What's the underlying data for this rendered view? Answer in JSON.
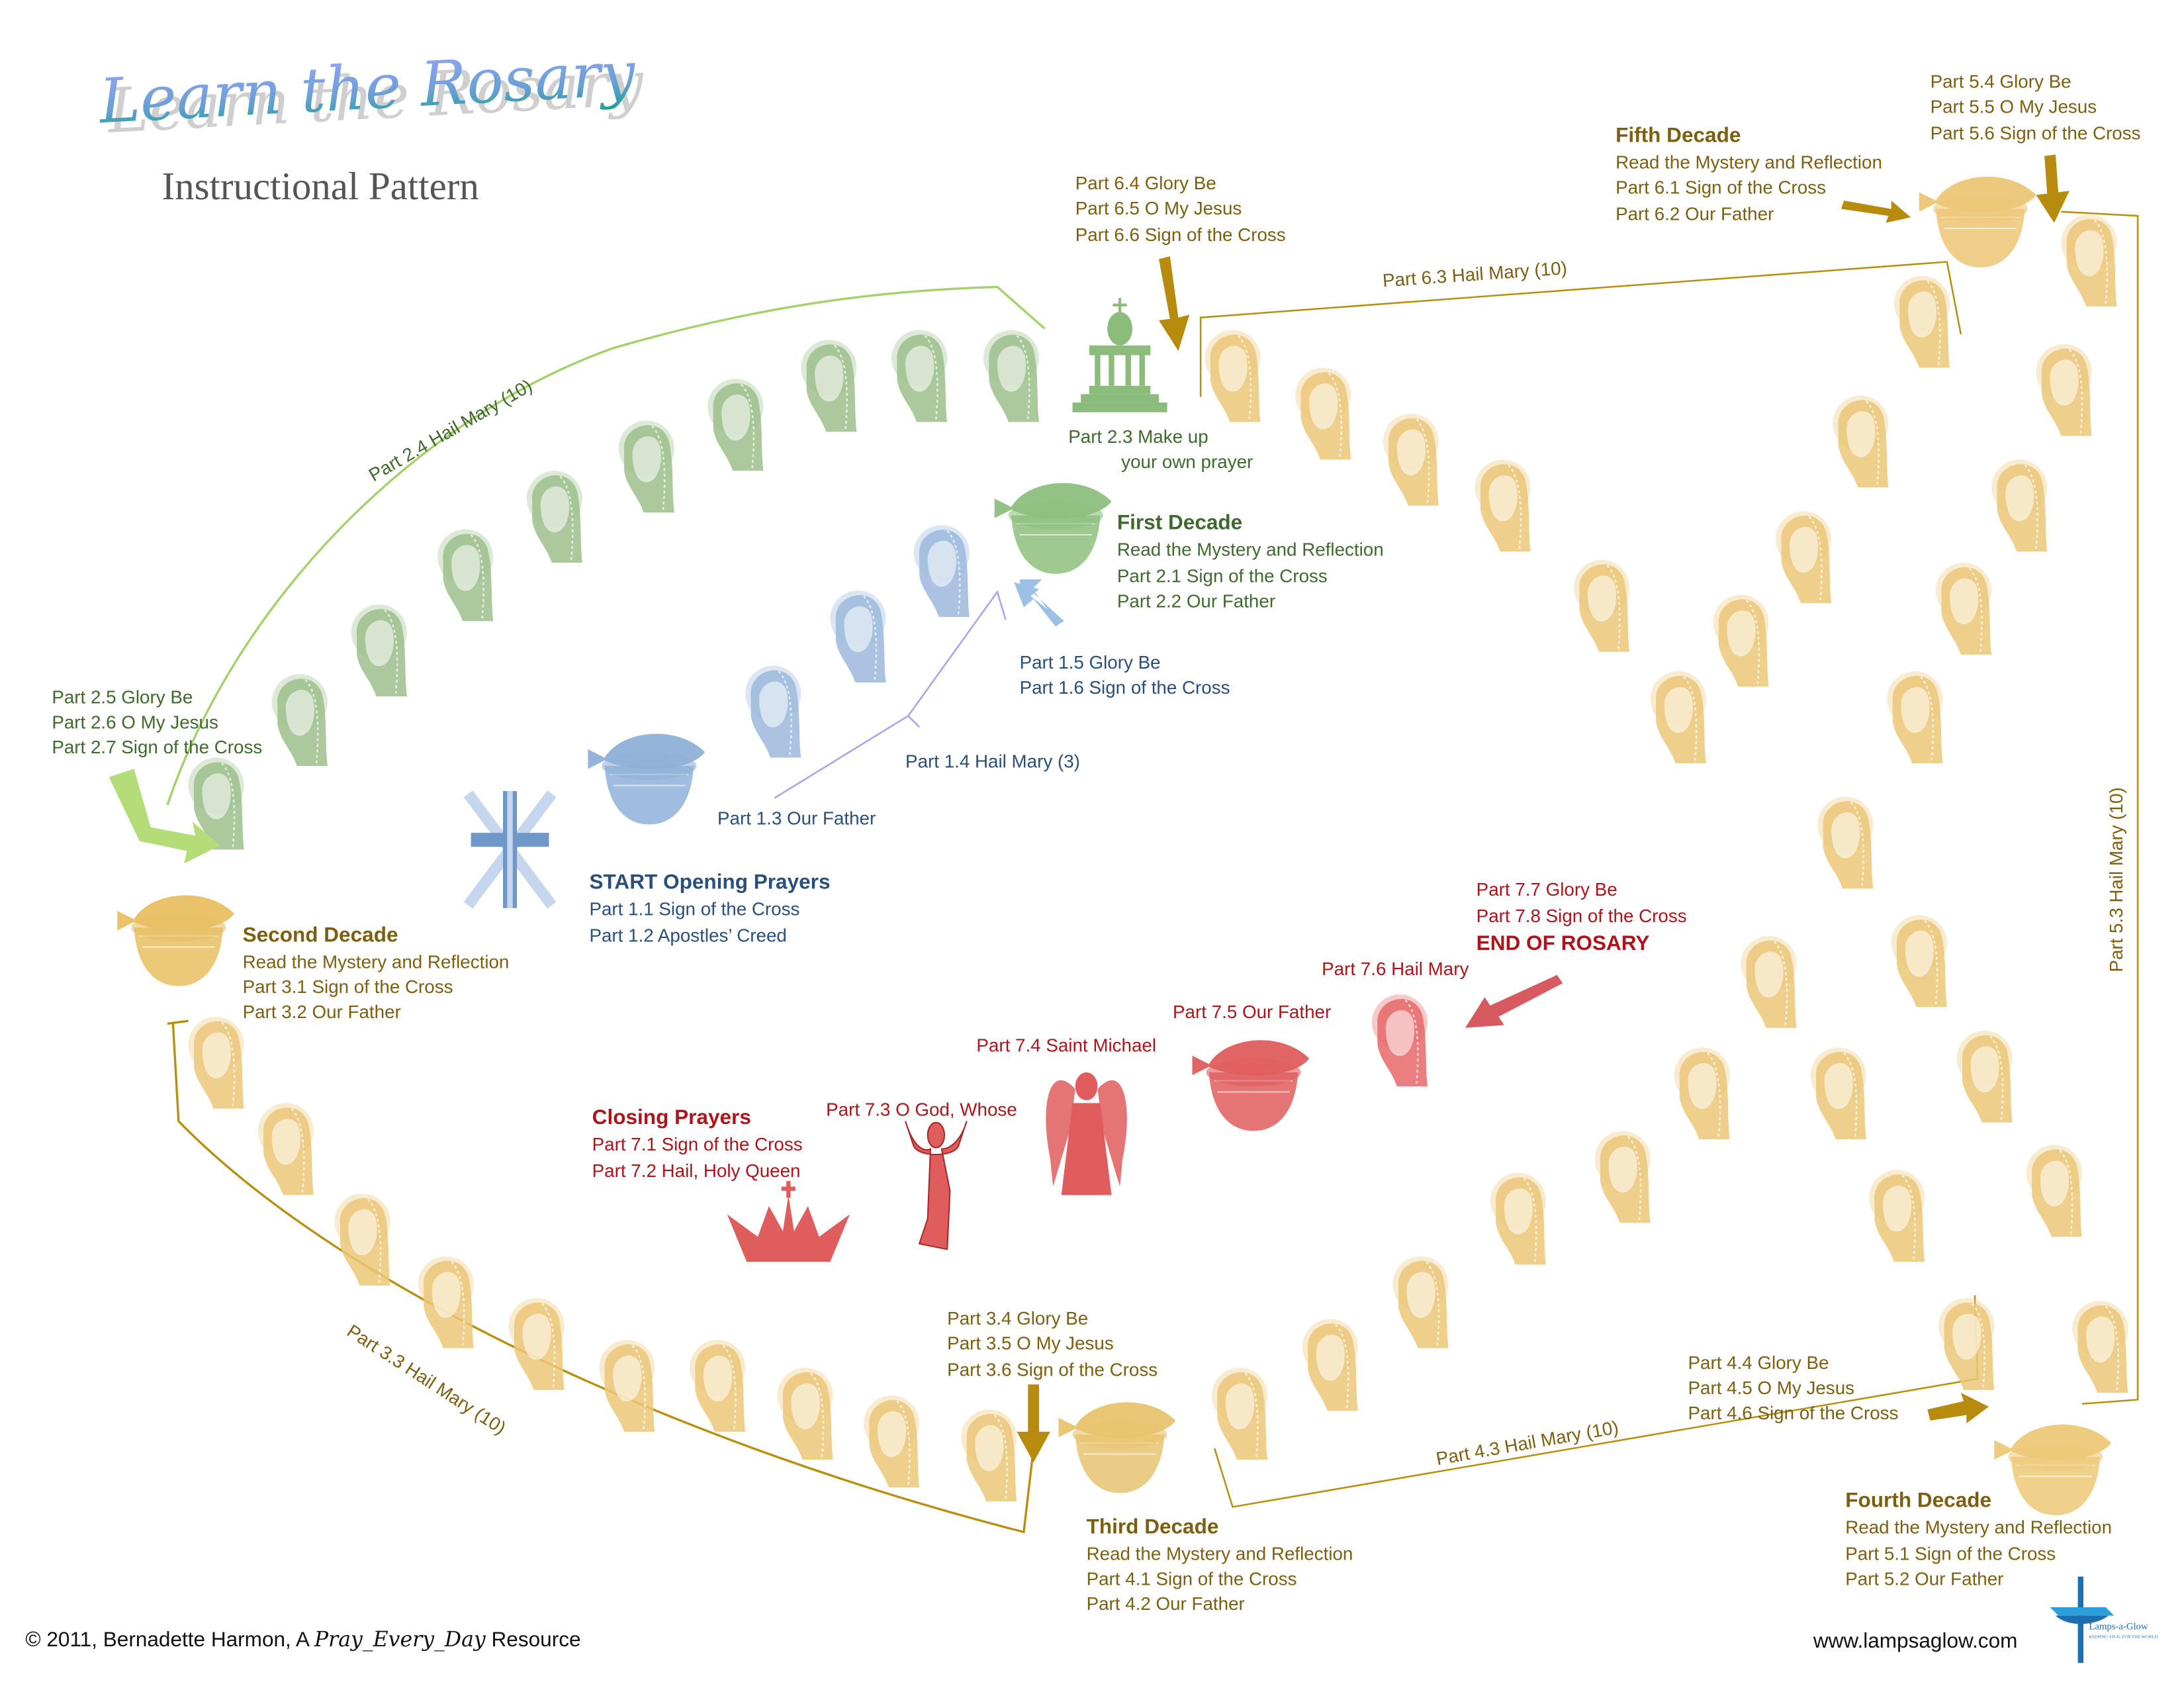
{
  "title": {
    "main": "Learn the Rosary",
    "subtitle": "Instructional Pattern"
  },
  "colors": {
    "opening": "#2a4f7a",
    "first_decade": "#3e6a2e",
    "gold": "#7d5f12",
    "closing": "#b0141b",
    "green_line": "#a5d06a",
    "gold_line": "#b8900f",
    "blue_line": "#a9a3ee",
    "blue_arrow": "#9dc1e6",
    "green_arrow": "#b4dc78",
    "gold_arrow": "#b78c0e",
    "red_arrow": "#d65a5f",
    "bead_gold": "#ebc778",
    "bead_green": "#9cc08c",
    "bead_blue": "#9cb8dc",
    "bead_red": "#e86868"
  },
  "opening": {
    "heading": "START  Opening Prayers",
    "lines": [
      "Part 1.1  Sign of the Cross",
      "Part 1.2  Apostles’ Creed"
    ],
    "our_father": "Part 1.3  Our Father",
    "hail_mary": "Part 1.4  Hail Mary (3)",
    "after": [
      "Part 1.5  Glory Be",
      "Part 1.6  Sign of the Cross"
    ]
  },
  "first_decade": {
    "heading": "First Decade",
    "lines": [
      "Read the Mystery and Reflection",
      "Part 2.1  Sign of the Cross",
      "Part 2.2  Our Father"
    ],
    "make_up": [
      "Part 2.3  Make up",
      "your own prayer"
    ],
    "hail_mary": "Part 2.4  Hail Mary (10)",
    "after": [
      "Part 2.5  Glory Be",
      "Part 2.6  O My Jesus",
      "Part 2.7  Sign of the Cross"
    ]
  },
  "second_decade": {
    "heading": "Second Decade",
    "lines": [
      "Read the Mystery and Reflection",
      "Part 3.1  Sign of the Cross",
      "Part 3.2  Our Father"
    ],
    "hail_mary": "Part 3.3  Hail Mary (10)",
    "after": [
      "Part 3.4  Glory Be",
      "Part 3.5  O My Jesus",
      "Part 3.6  Sign of the Cross"
    ]
  },
  "third_decade": {
    "heading": "Third Decade",
    "lines": [
      "Read the Mystery and Reflection",
      "Part 4.1  Sign of the Cross",
      "Part 4.2  Our Father"
    ],
    "hail_mary": "Part 4.3  Hail Mary (10)",
    "after": [
      "Part 4.4  Glory Be",
      "Part 4.5  O My Jesus",
      "Part 4.6  Sign of the Cross"
    ]
  },
  "fourth_decade": {
    "heading": "Fourth Decade",
    "lines": [
      "Read the Mystery and Reflection",
      "Part 5.1  Sign of the Cross",
      "Part 5.2  Our Father"
    ],
    "hail_mary": "Part 5.3  Hail Mary (10)",
    "after": [
      "Part 5.4  Glory Be",
      "Part 5.5  O My Jesus",
      "Part 5.6  Sign of the Cross"
    ]
  },
  "fifth_decade": {
    "heading": "Fifth Decade",
    "lines": [
      "Read the Mystery and Reflection",
      "Part 6.1  Sign of the Cross",
      "Part 6.2  Our Father"
    ],
    "hail_mary": "Part 6.3  Hail Mary (10)",
    "after": [
      "Part 6.4  Glory Be",
      "Part 6.5  O My Jesus",
      "Part 6.6  Sign of the Cross"
    ]
  },
  "closing": {
    "heading": "Closing Prayers",
    "lines": [
      "Part 7.1  Sign of the Cross",
      "Part 7.2  Hail, Holy Queen"
    ],
    "o_god": "Part 7.3  O God, Whose",
    "saint_michael": "Part 7.4   Saint Michael",
    "our_father": "Part 7.5  Our Father",
    "hail_mary": "Part 7.6  Hail Mary",
    "end": [
      "Part 7.7  Glory Be",
      "Part 7.8  Sign of the Cross"
    ],
    "end_heading": "END OF ROSARY"
  },
  "footer": {
    "copyright_prefix": "© 2011, Bernadette Harmon, A ",
    "copyright_script": "Pray_Every_Day",
    "copyright_suffix": " Resource",
    "website": "www.lampsaglow.com",
    "logo_name": "Lamps-a-Glow",
    "logo_tagline": "KEEPING VIGIL FOR THE WORLD"
  },
  "icons": {
    "bead": "hail-mary-bead-icon",
    "basket": "fish-basket-icon",
    "cross": "crucifix-icon",
    "shrine": "shrine-icon",
    "crown": "crown-icon",
    "orans": "praying-figure-icon",
    "angel": "angel-icon"
  }
}
